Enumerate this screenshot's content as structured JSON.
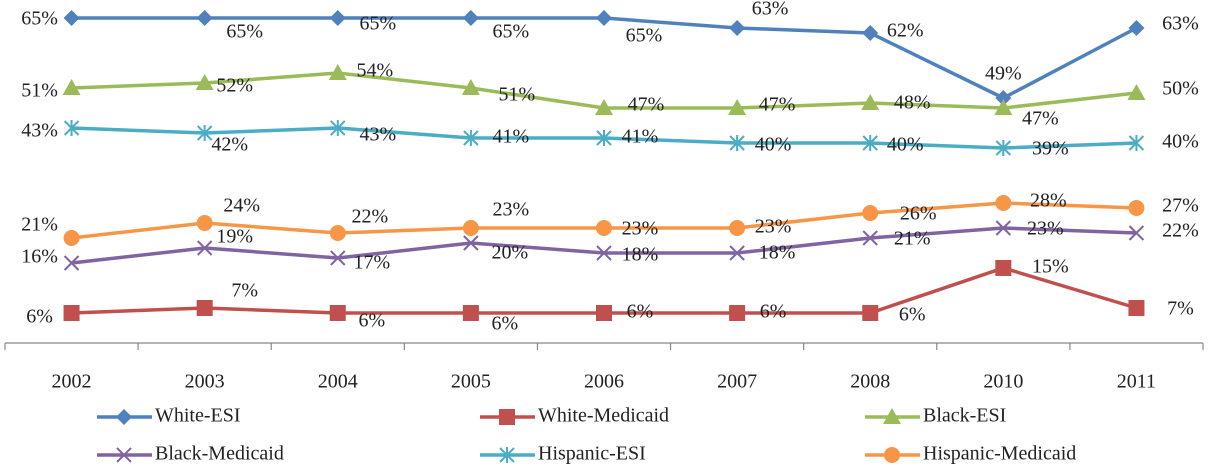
{
  "chart_data": {
    "type": "line",
    "categories": [
      "2002",
      "2003",
      "2004",
      "2005",
      "2006",
      "2007",
      "2008",
      "2010",
      "2011"
    ],
    "ylim": [
      0,
      65
    ],
    "legend": "bottom",
    "series": [
      {
        "name": "White-ESI",
        "color": "#4f81bd",
        "marker": "diamond",
        "values": [
          65,
          65,
          65,
          65,
          65,
          63,
          62,
          49,
          63
        ],
        "value_labels": [
          "65%",
          "65%",
          "65%",
          "65%",
          "65%",
          "63%",
          "62%",
          "49%",
          "63%"
        ]
      },
      {
        "name": "White-Medicaid",
        "color": "#c0504d",
        "marker": "square",
        "values": [
          6,
          7,
          6,
          6,
          6,
          6,
          6,
          15,
          7
        ],
        "value_labels": [
          "6%",
          "7%",
          "6%",
          "6%",
          "6%",
          "6%",
          "6%",
          "15%",
          "7%"
        ]
      },
      {
        "name": "Black-ESI",
        "color": "#9bbb59",
        "marker": "triangle",
        "values": [
          51,
          52,
          54,
          51,
          47,
          47,
          48,
          47,
          50
        ],
        "value_labels": [
          "51%",
          "52%",
          "54%",
          "51%",
          "47%",
          "47%",
          "48%",
          "47%",
          "50%"
        ]
      },
      {
        "name": "Black-Medicaid",
        "color": "#8064a2",
        "marker": "x",
        "values": [
          16,
          19,
          17,
          20,
          18,
          18,
          21,
          23,
          22
        ],
        "value_labels": [
          "16%",
          "19%",
          "17%",
          "20%",
          "18%",
          "18%",
          "21%",
          "23%",
          "22%"
        ]
      },
      {
        "name": "Hispanic-ESI",
        "color": "#4bacc6",
        "marker": "star",
        "values": [
          43,
          42,
          43,
          41,
          41,
          40,
          40,
          39,
          40
        ],
        "value_labels": [
          "43%",
          "42%",
          "43%",
          "41%",
          "41%",
          "40%",
          "40%",
          "39%",
          "40%"
        ]
      },
      {
        "name": "Hispanic-Medicaid",
        "color": "#f79646",
        "marker": "circle",
        "values": [
          21,
          24,
          22,
          23,
          23,
          23,
          26,
          28,
          27
        ],
        "value_labels": [
          "21%",
          "24%",
          "22%",
          "23%",
          "23%",
          "23%",
          "26%",
          "28%",
          "27%"
        ]
      }
    ]
  }
}
